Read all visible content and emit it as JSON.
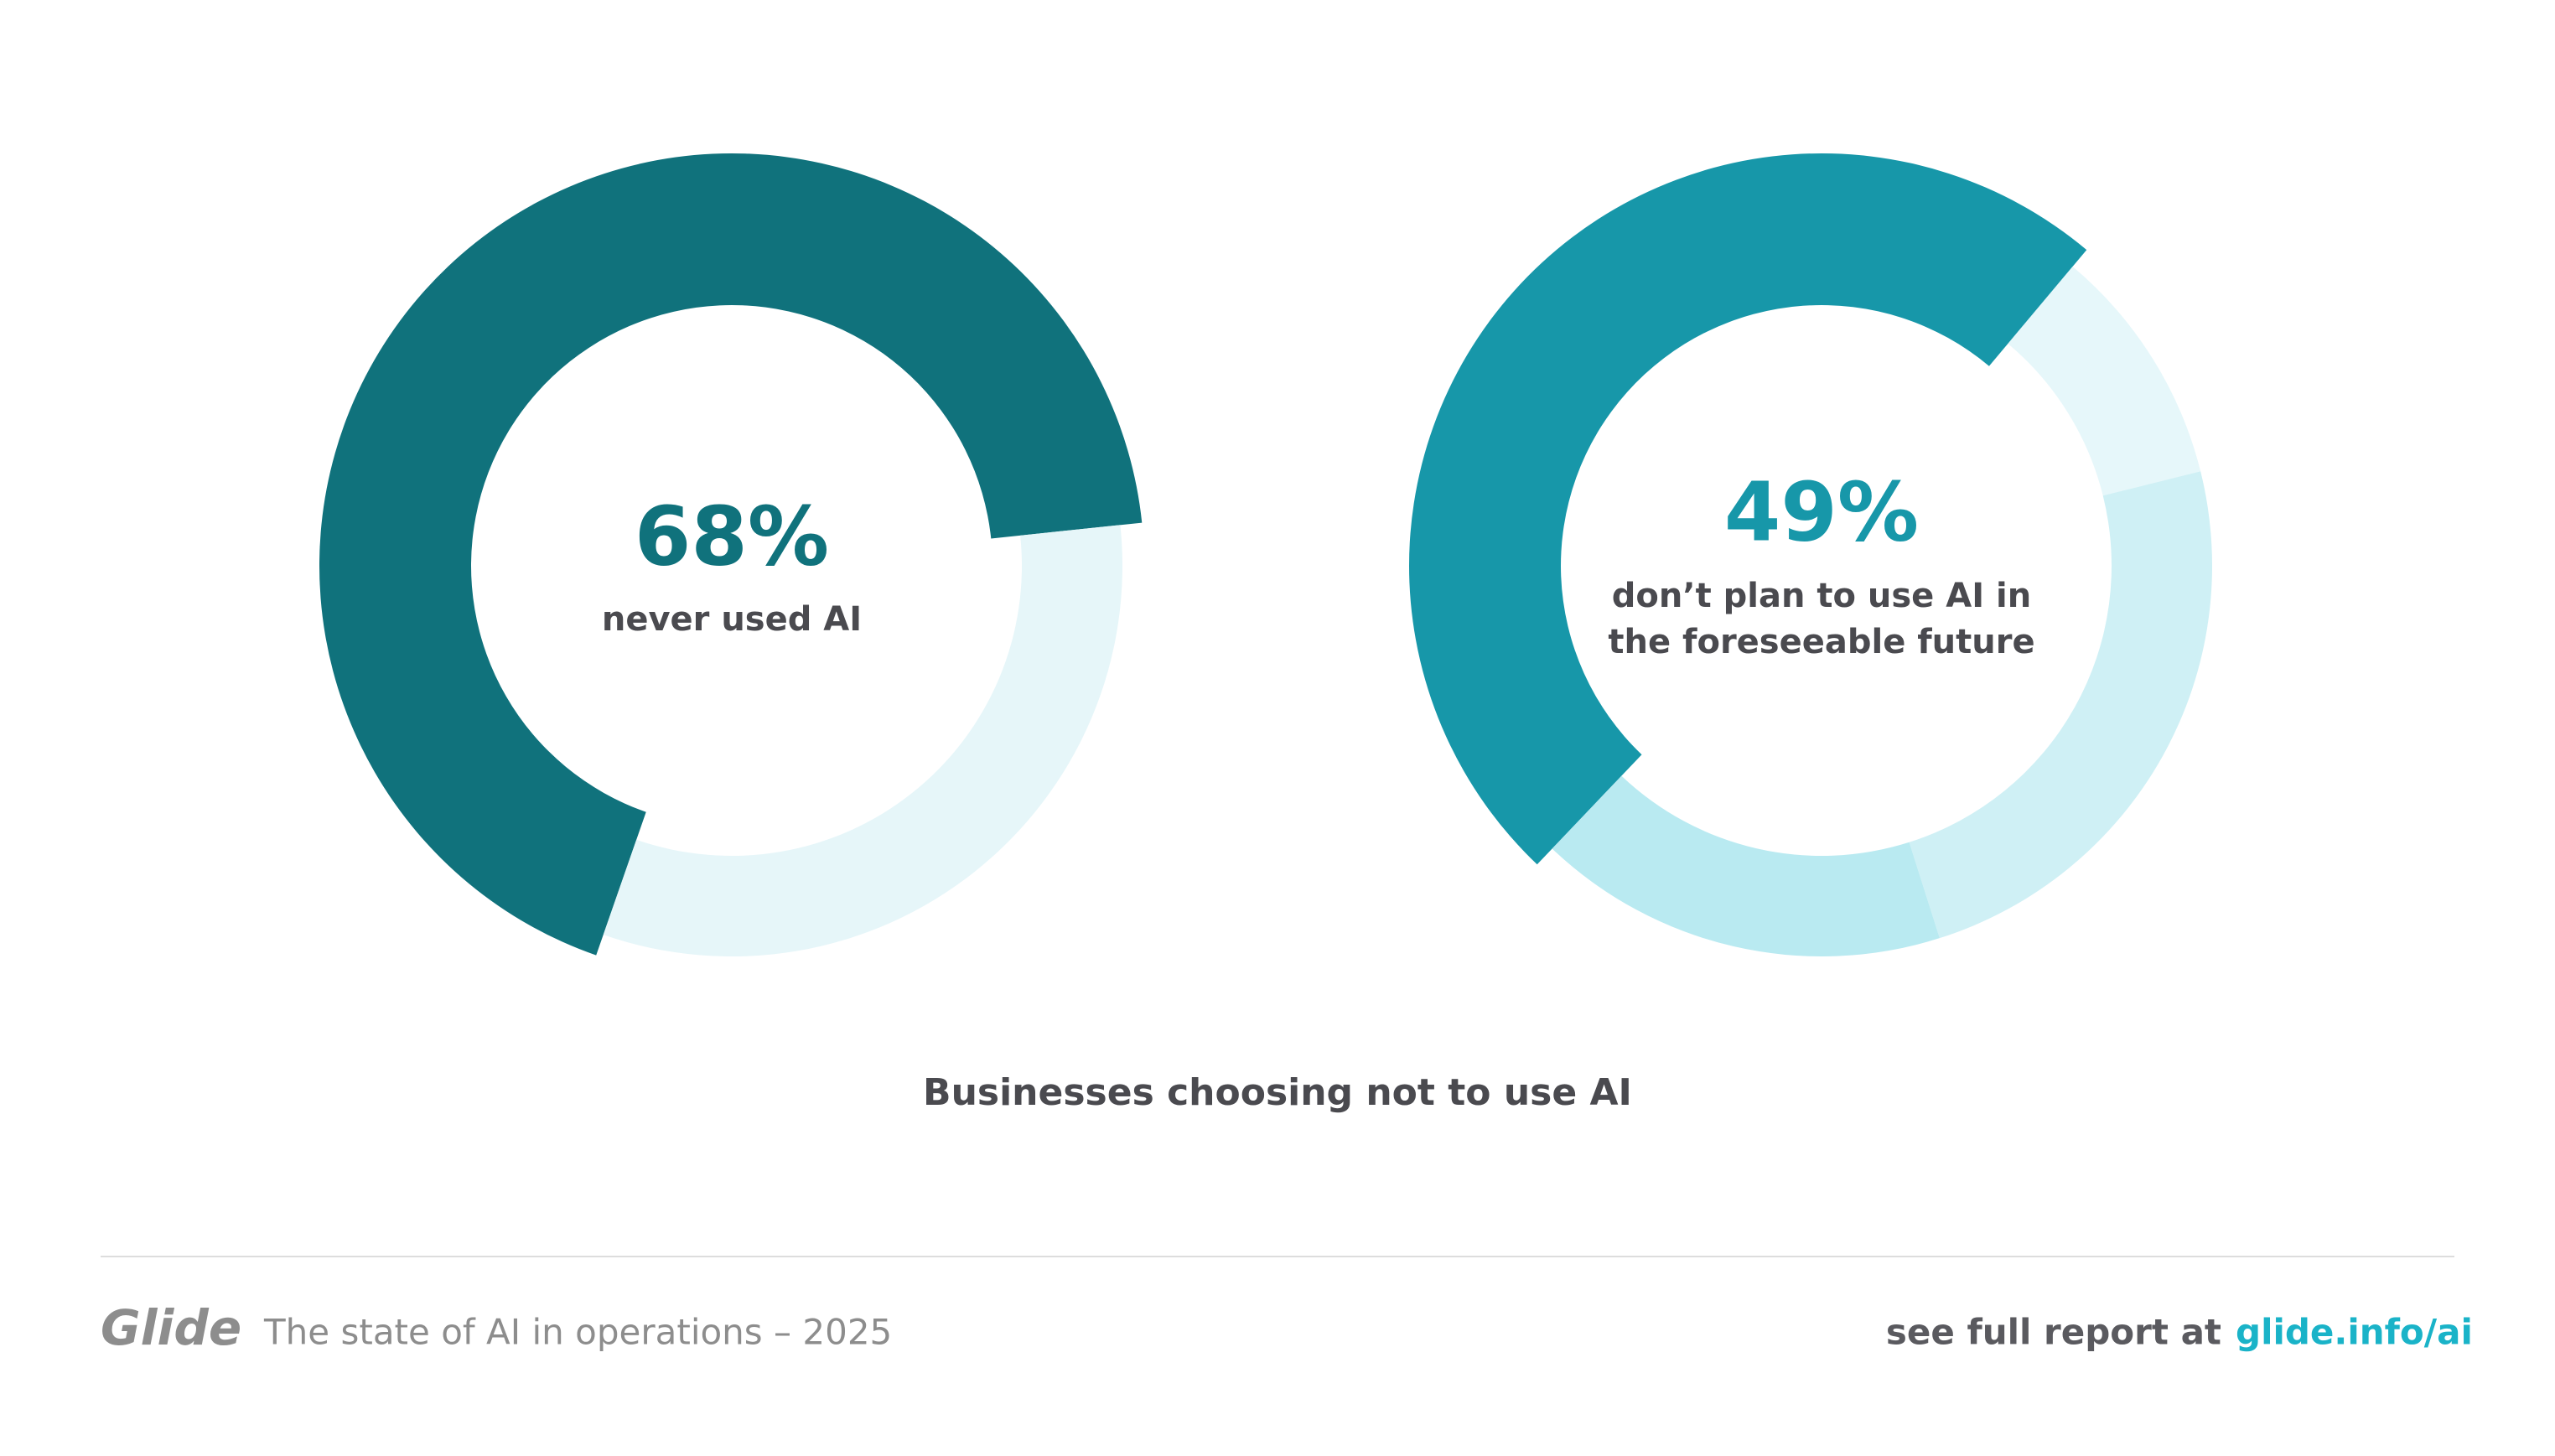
{
  "title": "Businesses choosing not to use AI",
  "footer": {
    "brand": "Glide",
    "subtitle": "The state of AI in operations – 2025",
    "cta": "see full report at",
    "link": "glide.info/ai"
  },
  "chart_data": [
    {
      "type": "donut",
      "values": [
        68,
        32
      ],
      "value_labels": [
        "68%",
        null
      ],
      "colors": [
        "#10727c",
        "#e6f6f9"
      ],
      "caption": [
        "never used AI"
      ]
    },
    {
      "type": "donut",
      "values": [
        49,
        10,
        24,
        17
      ],
      "value_labels": [
        "49%",
        null,
        null,
        null
      ],
      "colors": [
        "#1797a9",
        "#e6f7fa",
        "#cff0f5",
        "#b9eaf1"
      ],
      "caption": [
        "don’t plan to use AI in",
        "the foreseeable future"
      ]
    }
  ]
}
